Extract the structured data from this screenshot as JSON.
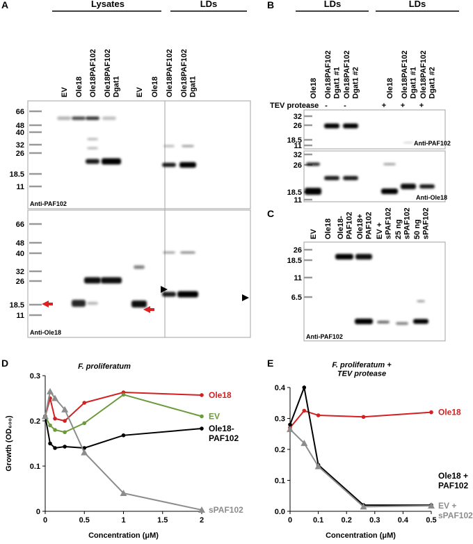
{
  "panels": {
    "A": {
      "letter": "A",
      "headers": [
        "Lysates",
        "LDs"
      ],
      "lanes": [
        "EV",
        "Ole18",
        "Ole18PAF102",
        "Ole18PAF102\nDgat1",
        "EV",
        "Ole18",
        "Ole18PAF102",
        "Ole18PAF102\nDgat1"
      ],
      "markers_top": [
        "66",
        "48",
        "40",
        "32",
        "26",
        "18.5",
        "11"
      ],
      "markers_bottom": [
        "66",
        "48",
        "40",
        "32",
        "26",
        "18.5",
        "11"
      ],
      "antibodies": [
        "Anti-PAF102",
        "Anti-Ole18"
      ]
    },
    "B": {
      "letter": "B",
      "headers": [
        "LDs",
        "LDs"
      ],
      "lanes": [
        "Ole18",
        "Ole18PAF102\nDgat1 #1",
        "Ole18PAF102\nDgat1 #2",
        "Ole18",
        "Ole18PAF102\nDgat1 #1",
        "Ole18PAF102\nDgat1 #2"
      ],
      "tev_label": "TEV protease",
      "tev": [
        "-",
        "-",
        "-",
        "+",
        "+",
        "+"
      ],
      "markers_top": [
        "32",
        "26",
        "18.5",
        "11"
      ],
      "markers_bottom": [
        "32",
        "26",
        "18.5",
        "11"
      ],
      "antibodies": [
        "Anti-PAF102",
        "Anti-Ole18"
      ]
    },
    "C": {
      "letter": "C",
      "lanes": [
        "EV",
        "Ole18",
        "Ole18-\nPAF102",
        "Ole18+\nPAF102",
        "EV +\nsPAF102",
        "25 ng\nsPAF102",
        "50 ng\nsPAF102"
      ],
      "markers": [
        "26",
        "18.5",
        "11",
        "6.5"
      ],
      "antibody": "Anti-PAF102"
    }
  },
  "chart_data": [
    {
      "type": "line",
      "panel": "D",
      "title": "F. proliferatum",
      "x_label": "Concentration (μM)",
      "y_label": "Growth (OD₆₀₀)",
      "x": [
        0,
        0.0625,
        0.125,
        0.25,
        0.5,
        1,
        2
      ],
      "xlim": [
        0,
        2
      ],
      "ylim": [
        0,
        0.3
      ],
      "xticks": [
        0,
        0.5,
        1,
        1.5,
        2
      ],
      "yticks": [
        0,
        0.1,
        0.2,
        0.3
      ],
      "series": [
        {
          "name": "Ole18",
          "color": "#d42020",
          "marker": "circle",
          "values": [
            0.21,
            0.25,
            0.205,
            0.2,
            0.24,
            0.263,
            0.257
          ]
        },
        {
          "name": "EV",
          "color": "#6a9a3a",
          "marker": "circle",
          "values": [
            0.21,
            0.19,
            0.18,
            0.175,
            0.195,
            0.258,
            0.21
          ]
        },
        {
          "name": "Ole18-\nPAF102",
          "color": "#000000",
          "marker": "circle",
          "values": [
            0.21,
            0.15,
            0.14,
            0.143,
            0.14,
            0.168,
            0.183
          ]
        },
        {
          "name": "sPAF102",
          "color": "#8c8c8c",
          "marker": "triangle",
          "values": [
            0.21,
            0.265,
            0.25,
            0.225,
            0.13,
            0.04,
            0.003
          ]
        }
      ]
    },
    {
      "type": "line",
      "panel": "E",
      "title": "F. proliferatum +\nTEV protease",
      "x_label": "Concentration (μM)",
      "x": [
        0,
        0.05,
        0.1,
        0.26,
        0.5
      ],
      "xlim": [
        0,
        0.5
      ],
      "ylim": [
        0,
        0.4
      ],
      "xticks": [
        0,
        0.1,
        0.2,
        0.3,
        0.4,
        0.5
      ],
      "yticks": [
        {
          "value": 0,
          "label": "0.0"
        },
        0.1,
        0.2,
        0.3,
        0.4
      ],
      "series": [
        {
          "name": "Ole18",
          "color": "#d42020",
          "marker": "circle",
          "values": [
            0.27,
            0.325,
            0.31,
            0.305,
            0.32
          ]
        },
        {
          "name": "Ole18 +\nPAF102",
          "color": "#000000",
          "marker": "circle",
          "values": [
            0.28,
            0.4,
            0.15,
            0.02,
            0.02
          ]
        },
        {
          "name": "EV +\nsPAF102",
          "color": "#8c8c8c",
          "marker": "triangle",
          "values": [
            0.265,
            0.22,
            0.145,
            0.015,
            0.018
          ]
        }
      ]
    }
  ]
}
